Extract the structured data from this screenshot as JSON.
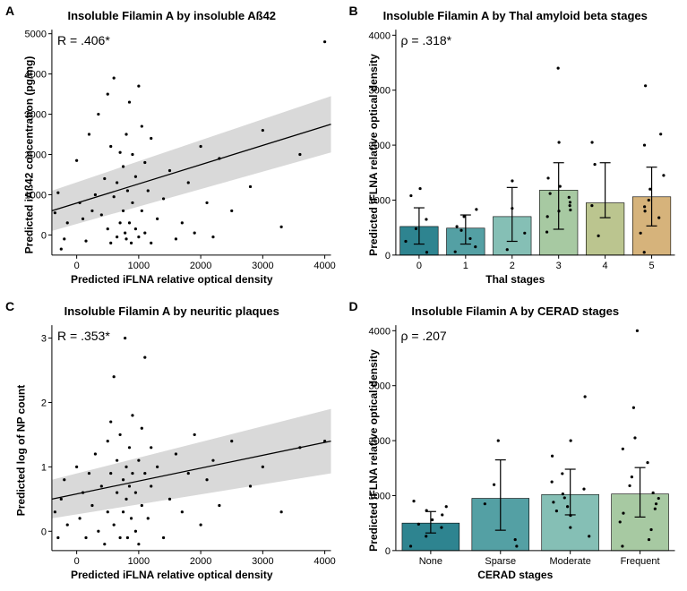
{
  "panelA": {
    "letter": "A",
    "type": "scatter",
    "title": "Insoluble Filamin A by insoluble Aß42",
    "stat": "R = .406*",
    "xlabel": "Predicted iFLNA relative optical density",
    "ylabel": "Predicted iAß42 concentration (pg/mg)",
    "xlim": [
      -400,
      4100
    ],
    "xtick_step": 1000,
    "x_ticks": [
      0,
      1000,
      2000,
      3000,
      4000
    ],
    "ylim": [
      -500,
      5100
    ],
    "ytick_step": 1000,
    "y_ticks": [
      0,
      1000,
      2000,
      3000,
      4000,
      5000
    ],
    "reg_y0": 600,
    "reg_y1": 2750,
    "ci_top_y0": 1100,
    "ci_top_y1": 3450,
    "ci_bot_y0": 100,
    "ci_bot_y1": 2050,
    "line_color": "#000000",
    "ci_color": "#d9d9d9",
    "marker_color": "#000000",
    "marker_size": 1.6,
    "points": [
      [
        -350,
        550
      ],
      [
        -300,
        1050
      ],
      [
        -250,
        -350
      ],
      [
        -200,
        -100
      ],
      [
        -150,
        300
      ],
      [
        0,
        1850
      ],
      [
        50,
        800
      ],
      [
        100,
        400
      ],
      [
        150,
        -150
      ],
      [
        200,
        2500
      ],
      [
        250,
        600
      ],
      [
        300,
        1000
      ],
      [
        350,
        3000
      ],
      [
        400,
        500
      ],
      [
        450,
        1400
      ],
      [
        500,
        150
      ],
      [
        500,
        3500
      ],
      [
        550,
        -200
      ],
      [
        550,
        2200
      ],
      [
        600,
        950
      ],
      [
        600,
        3900
      ],
      [
        650,
        -50
      ],
      [
        650,
        1300
      ],
      [
        700,
        300
      ],
      [
        700,
        2050
      ],
      [
        750,
        600
      ],
      [
        750,
        1700
      ],
      [
        780,
        50
      ],
      [
        800,
        -100
      ],
      [
        800,
        2500
      ],
      [
        820,
        1100
      ],
      [
        850,
        300
      ],
      [
        850,
        3300
      ],
      [
        880,
        -200
      ],
      [
        900,
        800
      ],
      [
        900,
        2000
      ],
      [
        950,
        150
      ],
      [
        950,
        1450
      ],
      [
        1000,
        -50
      ],
      [
        1000,
        3700
      ],
      [
        1050,
        600
      ],
      [
        1050,
        2700
      ],
      [
        1100,
        50
      ],
      [
        1100,
        1800
      ],
      [
        1150,
        1100
      ],
      [
        1200,
        -200
      ],
      [
        1200,
        2400
      ],
      [
        1300,
        400
      ],
      [
        1400,
        900
      ],
      [
        1500,
        1600
      ],
      [
        1600,
        -100
      ],
      [
        1700,
        300
      ],
      [
        1800,
        1300
      ],
      [
        1900,
        50
      ],
      [
        2000,
        2200
      ],
      [
        2100,
        800
      ],
      [
        2200,
        -50
      ],
      [
        2300,
        1900
      ],
      [
        2500,
        600
      ],
      [
        2800,
        1200
      ],
      [
        3000,
        2600
      ],
      [
        3300,
        200
      ],
      [
        3600,
        2000
      ],
      [
        4000,
        4800
      ]
    ]
  },
  "panelB": {
    "letter": "B",
    "type": "bar",
    "title": "Insoluble Filamin A by Thal amyloid beta stages",
    "stat": "ρ = .318*",
    "xlabel": "Thal stages",
    "ylabel": "Predicted iFLNA relative optical density",
    "ylim": [
      0,
      4100
    ],
    "y_ticks": [
      0,
      1000,
      2000,
      3000,
      4000
    ],
    "categories": [
      "0",
      "1",
      "2",
      "3",
      "4",
      "5"
    ],
    "values": [
      520,
      490,
      700,
      1180,
      950,
      1060
    ],
    "err_low": [
      200,
      200,
      250,
      470,
      680,
      530
    ],
    "err_high": [
      860,
      730,
      1230,
      1680,
      1680,
      1600
    ],
    "bar_colors": [
      "#2e8490",
      "#54a0a4",
      "#85bfb5",
      "#a7c9a2",
      "#bbc58f",
      "#d6b37b"
    ],
    "bar_border": "#000000",
    "err_color": "#000000",
    "marker_color": "#000000",
    "marker_size": 1.6,
    "jitter": [
      [
        0,
        250
      ],
      [
        0,
        480
      ],
      [
        0,
        650
      ],
      [
        0,
        1080
      ],
      [
        0,
        1210
      ],
      [
        0,
        50
      ],
      [
        1,
        300
      ],
      [
        1,
        520
      ],
      [
        1,
        700
      ],
      [
        1,
        830
      ],
      [
        1,
        150
      ],
      [
        1,
        60
      ],
      [
        1,
        450
      ],
      [
        2,
        100
      ],
      [
        2,
        400
      ],
      [
        2,
        850
      ],
      [
        2,
        1350
      ],
      [
        3,
        700
      ],
      [
        3,
        800
      ],
      [
        3,
        820
      ],
      [
        3,
        900
      ],
      [
        3,
        960
      ],
      [
        3,
        1050
      ],
      [
        3,
        1120
      ],
      [
        3,
        1250
      ],
      [
        3,
        1400
      ],
      [
        3,
        2050
      ],
      [
        3,
        3400
      ],
      [
        3,
        420
      ],
      [
        4,
        350
      ],
      [
        4,
        900
      ],
      [
        4,
        1650
      ],
      [
        4,
        2050
      ],
      [
        5,
        50
      ],
      [
        5,
        400
      ],
      [
        5,
        680
      ],
      [
        5,
        800
      ],
      [
        5,
        880
      ],
      [
        5,
        1000
      ],
      [
        5,
        1200
      ],
      [
        5,
        1450
      ],
      [
        5,
        2000
      ],
      [
        5,
        2200
      ],
      [
        5,
        3080
      ]
    ]
  },
  "panelC": {
    "letter": "C",
    "type": "scatter",
    "title": "Insoluble Filamin A by neuritic plaques",
    "stat": "R = .353*",
    "xlabel": "Predicted iFLNA relative optical density",
    "ylabel": "Predicted log of NP count",
    "xlim": [
      -400,
      4100
    ],
    "xtick_step": 1000,
    "x_ticks": [
      0,
      1000,
      2000,
      3000,
      4000
    ],
    "ylim": [
      -0.3,
      3.2
    ],
    "y_ticks": [
      0,
      1,
      2,
      3
    ],
    "reg_y0": 0.5,
    "reg_y1": 1.4,
    "ci_top_y0": 0.8,
    "ci_top_y1": 1.9,
    "ci_bot_y0": 0.2,
    "ci_bot_y1": 0.9,
    "line_color": "#000000",
    "ci_color": "#d9d9d9",
    "marker_color": "#000000",
    "marker_size": 1.6,
    "points": [
      [
        -350,
        0.3
      ],
      [
        -300,
        -0.1
      ],
      [
        -250,
        0.5
      ],
      [
        -200,
        0.8
      ],
      [
        -150,
        0.1
      ],
      [
        0,
        1.0
      ],
      [
        50,
        0.2
      ],
      [
        100,
        0.6
      ],
      [
        150,
        -0.1
      ],
      [
        200,
        0.9
      ],
      [
        250,
        0.4
      ],
      [
        300,
        1.2
      ],
      [
        350,
        0.0
      ],
      [
        400,
        0.7
      ],
      [
        450,
        -0.2
      ],
      [
        500,
        1.4
      ],
      [
        500,
        0.3
      ],
      [
        550,
        0.9
      ],
      [
        550,
        1.7
      ],
      [
        600,
        0.1
      ],
      [
        600,
        2.4
      ],
      [
        650,
        0.6
      ],
      [
        650,
        1.1
      ],
      [
        700,
        -0.1
      ],
      [
        700,
        1.5
      ],
      [
        750,
        0.8
      ],
      [
        750,
        0.3
      ],
      [
        780,
        3.0
      ],
      [
        800,
        0.5
      ],
      [
        800,
        1.0
      ],
      [
        820,
        -0.1
      ],
      [
        850,
        0.7
      ],
      [
        850,
        1.3
      ],
      [
        880,
        0.2
      ],
      [
        900,
        0.9
      ],
      [
        900,
        1.8
      ],
      [
        950,
        0.0
      ],
      [
        950,
        0.6
      ],
      [
        1000,
        1.1
      ],
      [
        1000,
        -0.2
      ],
      [
        1050,
        1.6
      ],
      [
        1050,
        0.4
      ],
      [
        1100,
        0.9
      ],
      [
        1100,
        2.7
      ],
      [
        1150,
        0.2
      ],
      [
        1200,
        1.3
      ],
      [
        1200,
        0.7
      ],
      [
        1300,
        1.0
      ],
      [
        1400,
        -0.1
      ],
      [
        1500,
        0.5
      ],
      [
        1600,
        1.2
      ],
      [
        1700,
        0.3
      ],
      [
        1800,
        0.9
      ],
      [
        1900,
        1.5
      ],
      [
        2000,
        0.1
      ],
      [
        2100,
        0.8
      ],
      [
        2200,
        1.1
      ],
      [
        2300,
        0.4
      ],
      [
        2500,
        1.4
      ],
      [
        2800,
        0.7
      ],
      [
        3000,
        1.0
      ],
      [
        3300,
        0.3
      ],
      [
        3600,
        1.3
      ],
      [
        4000,
        1.4
      ]
    ]
  },
  "panelD": {
    "letter": "D",
    "type": "bar",
    "title": "Insoluble Filamin A by CERAD stages",
    "stat": "ρ = .207",
    "xlabel": "CERAD stages",
    "ylabel": "Predicted iFLNA relative optical density",
    "ylim": [
      0,
      4100
    ],
    "y_ticks": [
      0,
      1000,
      2000,
      3000,
      4000
    ],
    "categories": [
      "None",
      "Sparse",
      "Moderate",
      "Frequent"
    ],
    "values": [
      500,
      950,
      1020,
      1030
    ],
    "err_low": [
      320,
      370,
      650,
      610
    ],
    "err_high": [
      710,
      1650,
      1480,
      1510
    ],
    "bar_colors": [
      "#2e8490",
      "#54a0a4",
      "#85bfb5",
      "#a7c9a2"
    ],
    "bar_border": "#000000",
    "err_color": "#000000",
    "marker_color": "#000000",
    "marker_size": 1.6,
    "jitter": [
      [
        0,
        80
      ],
      [
        0,
        260
      ],
      [
        0,
        420
      ],
      [
        0,
        480
      ],
      [
        0,
        560
      ],
      [
        0,
        650
      ],
      [
        0,
        730
      ],
      [
        0,
        800
      ],
      [
        0,
        900
      ],
      [
        1,
        80
      ],
      [
        1,
        200
      ],
      [
        1,
        850
      ],
      [
        1,
        1200
      ],
      [
        1,
        2000
      ],
      [
        2,
        260
      ],
      [
        2,
        420
      ],
      [
        2,
        640
      ],
      [
        2,
        720
      ],
      [
        2,
        800
      ],
      [
        2,
        880
      ],
      [
        2,
        960
      ],
      [
        2,
        1030
      ],
      [
        2,
        1120
      ],
      [
        2,
        1250
      ],
      [
        2,
        1400
      ],
      [
        2,
        1720
      ],
      [
        2,
        2000
      ],
      [
        2,
        2800
      ],
      [
        3,
        80
      ],
      [
        3,
        200
      ],
      [
        3,
        380
      ],
      [
        3,
        520
      ],
      [
        3,
        680
      ],
      [
        3,
        760
      ],
      [
        3,
        850
      ],
      [
        3,
        950
      ],
      [
        3,
        1050
      ],
      [
        3,
        1180
      ],
      [
        3,
        1340
      ],
      [
        3,
        1600
      ],
      [
        3,
        1850
      ],
      [
        3,
        2050
      ],
      [
        3,
        2600
      ],
      [
        3,
        4000
      ]
    ]
  },
  "label_fontsize": 12,
  "title_fontsize": 13,
  "tick_fontsize": 11,
  "background_color": "#ffffff"
}
